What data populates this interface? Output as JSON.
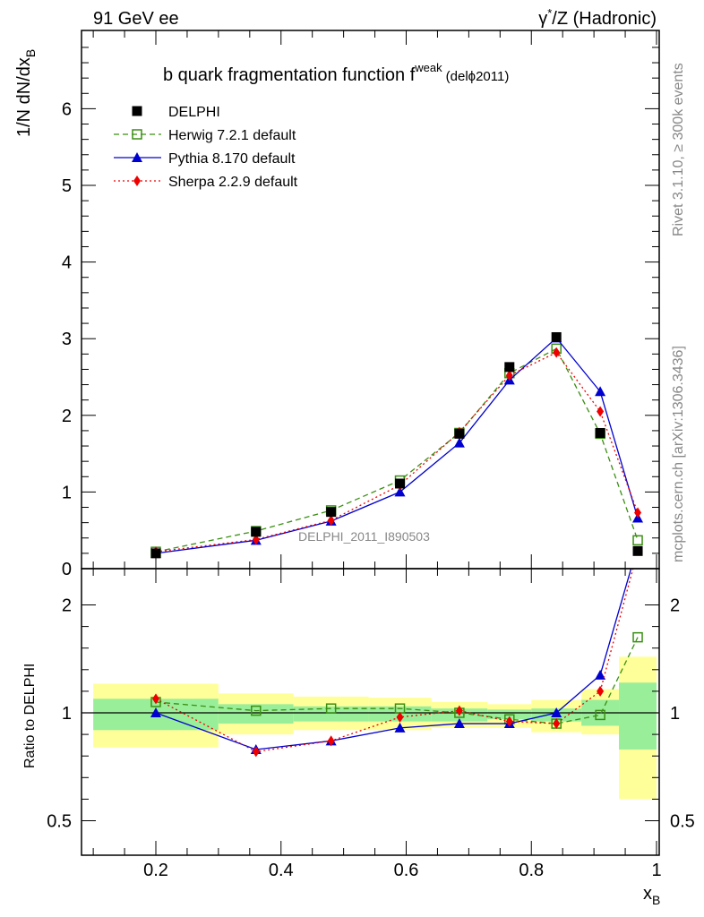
{
  "header": {
    "left": "91 GeV ee",
    "right_prefix": "γ",
    "right_sup": "*",
    "right_rest": "/Z (Hadronic)"
  },
  "title": {
    "main": "b quark fragmentation function f",
    "sup": "weak",
    "tag_pre": "(del",
    "tag_phi": "ϕ",
    "tag_post": "2011)"
  },
  "side": {
    "rivet": "Rivet 3.1.10, ≥ 300k events",
    "mcplots": "mcplots.cern.ch [arXiv:1306.3436]"
  },
  "watermark": "DELPHI_2011_I890503",
  "axes": {
    "ylabel_main": "1/N dN/dx",
    "ylabel_sub": "B",
    "ylabel_ratio": "Ratio to DELPHI",
    "xlabel_main": "x",
    "xlabel_sub": "B"
  },
  "colors": {
    "data": "#000000",
    "herwig": "#3a8f12",
    "pythia": "#0000d0",
    "sherpa": "#ee0000",
    "band_inner": "#99ee99",
    "band_outer": "#ffff99"
  },
  "chart_data": [
    {
      "type": "line",
      "panel": "main",
      "xlim": [
        0.085,
        1.0
      ],
      "ylim": [
        0,
        7
      ],
      "x_ticks": [
        0.2,
        0.4,
        0.6,
        0.8,
        1
      ],
      "y_ticks": [
        0,
        1,
        2,
        3,
        4,
        5,
        6
      ],
      "legend_placement": "top-left",
      "x": [
        0.2,
        0.36,
        0.48,
        0.59,
        0.685,
        0.765,
        0.84,
        0.91,
        0.97
      ],
      "series": [
        {
          "name": "DELPHI",
          "style": "data",
          "values": [
            0.2,
            0.48,
            0.74,
            1.11,
            1.76,
            2.63,
            3.02,
            1.77,
            0.23
          ]
        },
        {
          "name": "Herwig 7.2.1 default",
          "style": "herwig",
          "values": [
            0.22,
            0.49,
            0.76,
            1.15,
            1.77,
            2.55,
            2.87,
            1.76,
            0.37
          ]
        },
        {
          "name": "Pythia 8.170 default",
          "style": "pythia",
          "values": [
            0.2,
            0.37,
            0.62,
            1.0,
            1.64,
            2.46,
            3.01,
            2.31,
            0.66
          ]
        },
        {
          "name": "Sherpa 2.2.9 default",
          "style": "sherpa",
          "values": [
            0.22,
            0.38,
            0.63,
            1.09,
            1.78,
            2.52,
            2.82,
            2.05,
            0.73
          ]
        }
      ]
    },
    {
      "type": "line",
      "panel": "ratio",
      "xlim": [
        0.085,
        1.0
      ],
      "ylim": [
        0.35,
        2.35
      ],
      "y_ticks": [
        0.5,
        1,
        2
      ],
      "x": [
        0.2,
        0.36,
        0.48,
        0.59,
        0.685,
        0.765,
        0.84,
        0.91,
        0.97
      ],
      "bins": [
        [
          0.1,
          0.3
        ],
        [
          0.3,
          0.42
        ],
        [
          0.42,
          0.54
        ],
        [
          0.54,
          0.64
        ],
        [
          0.64,
          0.73
        ],
        [
          0.73,
          0.8
        ],
        [
          0.8,
          0.88
        ],
        [
          0.88,
          0.94
        ],
        [
          0.94,
          1.0
        ]
      ],
      "band_inner": [
        [
          0.92,
          1.13
        ],
        [
          0.95,
          1.08
        ],
        [
          0.96,
          1.06
        ],
        [
          0.96,
          1.06
        ],
        [
          0.96,
          1.04
        ],
        [
          0.97,
          1.03
        ],
        [
          0.96,
          1.04
        ],
        [
          0.94,
          1.12
        ],
        [
          0.83,
          1.28
        ]
      ],
      "band_outer": [
        [
          0.84,
          1.27
        ],
        [
          0.9,
          1.18
        ],
        [
          0.92,
          1.15
        ],
        [
          0.92,
          1.14
        ],
        [
          0.93,
          1.1
        ],
        [
          0.93,
          1.08
        ],
        [
          0.91,
          1.12
        ],
        [
          0.9,
          1.22
        ],
        [
          0.6,
          1.52
        ]
      ],
      "series": [
        {
          "name": "Herwig 7.2.1 default",
          "style": "herwig",
          "values": [
            1.1,
            1.02,
            1.04,
            1.04,
            1.0,
            0.97,
            0.95,
            0.99,
            1.7
          ]
        },
        {
          "name": "Pythia 8.170 default",
          "style": "pythia",
          "values": [
            1.0,
            0.83,
            0.87,
            0.93,
            0.95,
            0.95,
            1.0,
            1.35,
            2.55
          ]
        },
        {
          "name": "Sherpa 2.2.9 default",
          "style": "sherpa",
          "values": [
            1.13,
            0.82,
            0.87,
            0.98,
            1.02,
            0.96,
            0.95,
            1.2,
            2.5
          ]
        }
      ]
    }
  ]
}
